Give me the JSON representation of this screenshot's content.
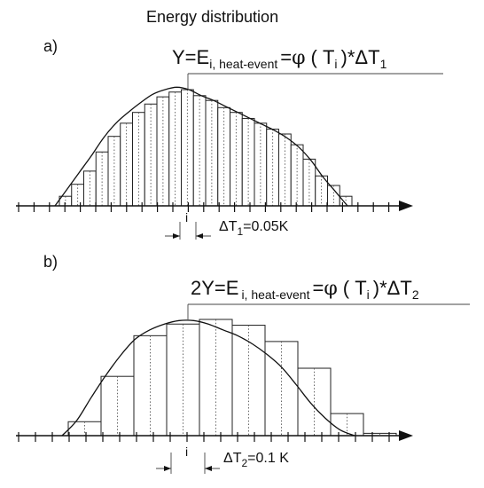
{
  "title": "Energy distribution",
  "panel_a": {
    "label": "a)",
    "eq_lhs": "Y=E",
    "eq_sub": "i, heat-event",
    "eq_eq": "=",
    "eq_phi": "φ",
    "eq_open": "( T",
    "eq_ti_sub": "i",
    "eq_close": ")*ΔT",
    "eq_dt_sub": "1",
    "i_label": "i",
    "dt_pre": "ΔT",
    "dt_sub": "1",
    "dt_val": "=0.05K"
  },
  "panel_b": {
    "label": "b)",
    "eq_lhs": "2Y=E",
    "eq_sub": "i, heat-event",
    "eq_eq": "=",
    "eq_phi": "φ",
    "eq_open": "( T",
    "eq_ti_sub": "i",
    "eq_close": ")*ΔT",
    "eq_dt_sub": "2",
    "i_label": "i",
    "dt_pre": "ΔT",
    "dt_sub": "2",
    "dt_val": "=0.1 K"
  },
  "chart_data": [
    {
      "type": "bar",
      "panel": "a",
      "bin_width": 0.05,
      "x_unit": "K",
      "values": [
        0.08,
        0.18,
        0.29,
        0.45,
        0.58,
        0.69,
        0.78,
        0.85,
        0.91,
        0.95,
        0.97,
        0.92,
        0.88,
        0.82,
        0.78,
        0.73,
        0.69,
        0.64,
        0.6,
        0.51,
        0.39,
        0.25,
        0.17,
        0.08
      ],
      "curve": [
        0.0,
        0.14,
        0.28,
        0.42,
        0.57,
        0.69,
        0.78,
        0.86,
        0.93,
        0.97,
        0.99,
        0.97,
        0.92,
        0.88,
        0.83,
        0.78,
        0.73,
        0.68,
        0.63,
        0.57,
        0.49,
        0.38,
        0.24,
        0.12,
        0.0
      ]
    },
    {
      "type": "bar",
      "panel": "b",
      "bin_width": 0.1,
      "x_unit": "K",
      "values": [
        0.12,
        0.51,
        0.86,
        0.96,
        1.0,
        0.95,
        0.81,
        0.58,
        0.19,
        0.02
      ],
      "curve": [
        0.0,
        0.13,
        0.33,
        0.52,
        0.69,
        0.83,
        0.91,
        0.96,
        0.99,
        0.99,
        0.96,
        0.91,
        0.86,
        0.79,
        0.7,
        0.59,
        0.44,
        0.28,
        0.15,
        0.05,
        0.0
      ]
    }
  ]
}
